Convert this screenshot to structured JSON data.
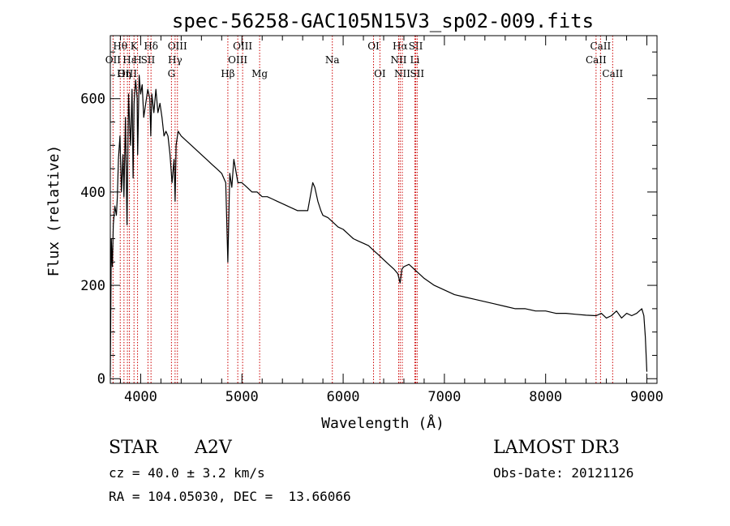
{
  "chart_data": {
    "type": "line",
    "title": "spec-56258-GAC105N15V3_sp02-009.fits",
    "xlabel": "Wavelength (Å)",
    "ylabel": "Flux (relative)",
    "xlim": [
      3700,
      9100
    ],
    "ylim": [
      -10,
      735
    ],
    "x_ticks": [
      4000,
      5000,
      6000,
      7000,
      8000,
      9000
    ],
    "y_ticks": [
      0,
      200,
      400,
      600
    ],
    "series": [
      {
        "name": "spectrum",
        "x": [
          3700,
          3710,
          3720,
          3730,
          3745,
          3760,
          3770,
          3780,
          3795,
          3810,
          3825,
          3835,
          3850,
          3865,
          3880,
          3890,
          3900,
          3915,
          3925,
          3935,
          3950,
          3965,
          3970,
          3985,
          4000,
          4015,
          4030,
          4050,
          4070,
          4090,
          4100,
          4110,
          4130,
          4150,
          4170,
          4190,
          4210,
          4230,
          4250,
          4270,
          4290,
          4310,
          4330,
          4340,
          4350,
          4370,
          4400,
          4450,
          4500,
          4550,
          4600,
          4650,
          4700,
          4750,
          4800,
          4840,
          4861,
          4880,
          4900,
          4920,
          4960,
          5000,
          5050,
          5100,
          5150,
          5200,
          5250,
          5300,
          5350,
          5400,
          5450,
          5500,
          5550,
          5600,
          5650,
          5700,
          5720,
          5750,
          5780,
          5800,
          5850,
          5900,
          5950,
          6000,
          6050,
          6100,
          6150,
          6200,
          6250,
          6300,
          6350,
          6400,
          6450,
          6500,
          6540,
          6563,
          6580,
          6600,
          6650,
          6700,
          6750,
          6800,
          6900,
          7000,
          7100,
          7200,
          7300,
          7400,
          7500,
          7600,
          7700,
          7800,
          7900,
          8000,
          8100,
          8200,
          8300,
          8400,
          8500,
          8550,
          8600,
          8650,
          8700,
          8750,
          8800,
          8850,
          8900,
          8950,
          8970,
          8985,
          9000
        ],
        "values": [
          5,
          300,
          240,
          330,
          370,
          350,
          390,
          470,
          520,
          400,
          480,
          390,
          560,
          330,
          610,
          550,
          500,
          620,
          430,
          590,
          640,
          600,
          480,
          650,
          610,
          630,
          560,
          590,
          620,
          600,
          520,
          610,
          570,
          620,
          570,
          590,
          560,
          520,
          530,
          520,
          480,
          420,
          470,
          380,
          500,
          530,
          520,
          510,
          500,
          490,
          480,
          470,
          460,
          450,
          440,
          420,
          250,
          440,
          410,
          470,
          420,
          420,
          410,
          400,
          400,
          390,
          390,
          385,
          380,
          375,
          370,
          365,
          360,
          360,
          360,
          420,
          410,
          380,
          360,
          350,
          345,
          335,
          325,
          320,
          310,
          300,
          295,
          290,
          285,
          275,
          265,
          255,
          245,
          235,
          225,
          205,
          235,
          240,
          245,
          235,
          225,
          215,
          200,
          190,
          180,
          175,
          170,
          165,
          160,
          155,
          150,
          150,
          145,
          145,
          140,
          140,
          138,
          136,
          135,
          140,
          130,
          135,
          145,
          130,
          140,
          135,
          140,
          150,
          135,
          90,
          15
        ]
      }
    ],
    "spectral_lines": [
      {
        "label": "Hθ",
        "wavelength": 3798,
        "row": 1
      },
      {
        "label": "OII",
        "wavelength": 3727,
        "row": 2
      },
      {
        "label": "OIII",
        "wavelength": 3869,
        "row": 3
      },
      {
        "label": "Hη",
        "wavelength": 3835,
        "row": 3
      },
      {
        "label": "Hε",
        "wavelength": 3889,
        "row": 2
      },
      {
        "label": "K",
        "wavelength": 3934,
        "row": 1
      },
      {
        "label": "H",
        "wavelength": 3969,
        "row": 2
      },
      {
        "label": "Hδ",
        "wavelength": 4102,
        "row": 1
      },
      {
        "label": "SII",
        "wavelength": 4072,
        "row": 2
      },
      {
        "label": "OIII",
        "wavelength": 4363,
        "row": 1
      },
      {
        "label": "Hγ",
        "wavelength": 4340,
        "row": 2
      },
      {
        "label": "G",
        "wavelength": 4304,
        "row": 3
      },
      {
        "label": "Hβ",
        "wavelength": 4861,
        "row": 3
      },
      {
        "label": "OIII",
        "wavelength": 5007,
        "row": 1
      },
      {
        "label": "OIII",
        "wavelength": 4959,
        "row": 2
      },
      {
        "label": "Mg",
        "wavelength": 5175,
        "row": 3
      },
      {
        "label": "Na",
        "wavelength": 5893,
        "row": 2
      },
      {
        "label": "OI",
        "wavelength": 6300,
        "row": 1
      },
      {
        "label": "OI",
        "wavelength": 6363,
        "row": 3
      },
      {
        "label": "Hα",
        "wavelength": 6563,
        "row": 1
      },
      {
        "label": "NII",
        "wavelength": 6548,
        "row": 2
      },
      {
        "label": "NII",
        "wavelength": 6584,
        "row": 3
      },
      {
        "label": "SII",
        "wavelength": 6717,
        "row": 1
      },
      {
        "label": "Li",
        "wavelength": 6708,
        "row": 2
      },
      {
        "label": "SII",
        "wavelength": 6731,
        "row": 3
      },
      {
        "label": "CaII",
        "wavelength": 8542,
        "row": 1
      },
      {
        "label": "CaII",
        "wavelength": 8498,
        "row": 2
      },
      {
        "label": "CaII",
        "wavelength": 8662,
        "row": 3
      }
    ]
  },
  "info": {
    "class": "STAR",
    "subclass": "A2V",
    "survey": "LAMOST DR3",
    "cz": "cz = 40.0 ± 3.2 km/s",
    "obs_date": "Obs-Date: 20121126",
    "coords": "RA = 104.05030, DEC =  13.66066"
  },
  "colors": {
    "line": "#000000",
    "spectral_line": "#cc0000",
    "background": "#ffffff"
  }
}
